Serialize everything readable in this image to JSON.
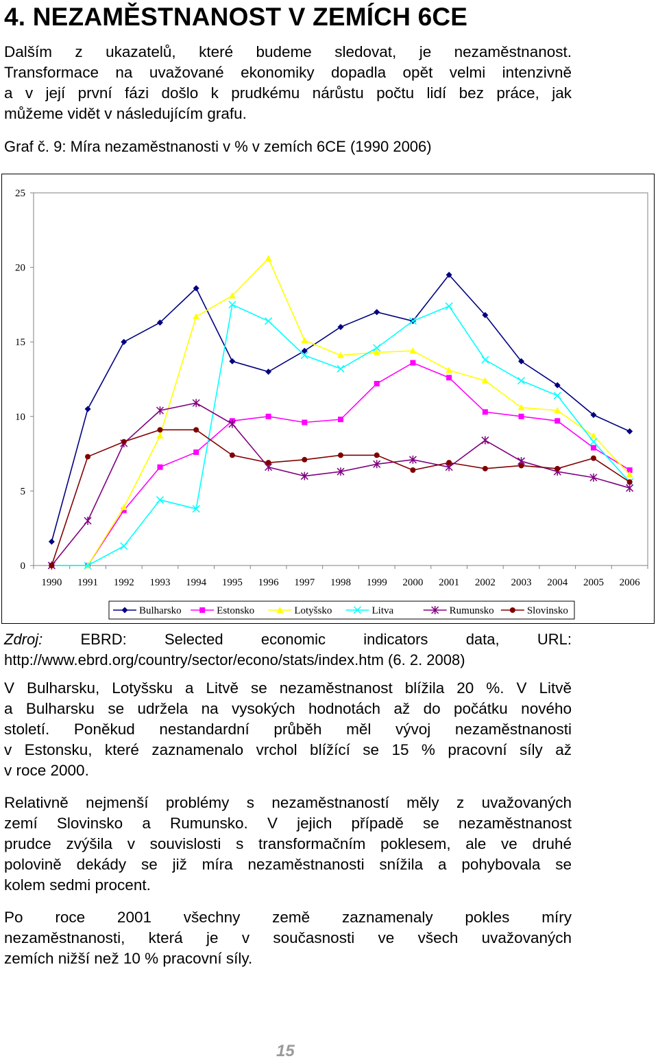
{
  "heading": "4. NEZAMĚSTNANOST V ZEMÍCH 6CE",
  "intro_lines": [
    "Dalším z ukazatelů, které budeme sledovat, je nezaměstnanost.",
    "Transformace na uvažované ekonomiky dopadla opět velmi intenzivně",
    "a v její první fázi došlo k prudkému nárůstu počtu lidí bez práce, jak",
    "můžeme vidět v následujícím grafu."
  ],
  "caption": "Graf č. 9: Míra nezaměstnanosti v % v zemích 6CE (1990 2006)",
  "source": {
    "prefix": "Zdroj:",
    "line1_rest": " EBRD: Selected economic indicators data, URL:",
    "line2": "http://www.ebrd.org/country/sector/econo/stats/index.htm (6. 2. 2008)"
  },
  "paragraph1_lines": [
    "V Bulharsku, Lotyšsku a Litvě se nezaměstnanost blížila 20 %. V Litvě",
    "a Bulharsku se udržela na vysokých hodnotách až do počátku nového",
    "století. Poněkud nestandardní průběh měl vývoj nezaměstnanosti",
    "v Estonsku, které zaznamenalo vrchol blížící se 15 % pracovní síly až",
    "v roce 2000."
  ],
  "paragraph2_lines": [
    "Relativně nejmenší problémy s nezaměstnaností měly z uvažovaných",
    "zemí Slovinsko a Rumunsko. V jejich případě se nezaměstnanost",
    "prudce zvýšila v souvislosti s transformačním poklesem, ale ve druhé",
    "polovině dekády se již míra nezaměstnanosti snížila a pohybovala se",
    "kolem sedmi procent."
  ],
  "paragraph3_lines": [
    "Po roce 2001 všechny země zaznamenaly pokles míry",
    "nezaměstnanosti, která je v současnosti ve všech uvažovaných",
    "zemích nižší než 10 % pracovní síly."
  ],
  "page_number": "15",
  "chart_data": {
    "type": "line",
    "title": "Míra nezaměstnanosti v % v zemích 6CE (1990 2006)",
    "xlabel": "",
    "ylabel": "",
    "ylim": [
      0,
      25
    ],
    "yticks": [
      "0",
      "5",
      "10",
      "15",
      "20",
      "25"
    ],
    "categories": [
      "1990",
      "1991",
      "1992",
      "1993",
      "1994",
      "1995",
      "1996",
      "1997",
      "1998",
      "1999",
      "2000",
      "2001",
      "2002",
      "2003",
      "2004",
      "2005",
      "2006"
    ],
    "legend_position": "bottom",
    "series": [
      {
        "name": "Bulharsko",
        "color": "#000080",
        "marker": "diamond",
        "values": [
          1.6,
          10.5,
          15.0,
          16.3,
          18.6,
          13.7,
          13.0,
          14.4,
          16.0,
          17.0,
          16.4,
          19.5,
          16.8,
          13.7,
          12.1,
          10.1,
          9.0
        ]
      },
      {
        "name": "Estonsko",
        "color": "#ff00ff",
        "marker": "square",
        "values": [
          0.0,
          0.0,
          3.7,
          6.6,
          7.6,
          9.7,
          10.0,
          9.6,
          9.8,
          12.2,
          13.6,
          12.6,
          10.3,
          10.0,
          9.7,
          7.9,
          6.4
        ]
      },
      {
        "name": "Lotyšsko",
        "color": "#ffff00",
        "marker": "triangle",
        "values": [
          0.0,
          0.0,
          3.9,
          8.7,
          16.7,
          18.1,
          20.6,
          15.1,
          14.1,
          14.3,
          14.4,
          13.1,
          12.4,
          10.6,
          10.4,
          8.7,
          6.1
        ]
      },
      {
        "name": "Litva",
        "color": "#00ffff",
        "marker": "x",
        "values": [
          0.0,
          0.0,
          1.3,
          4.4,
          3.8,
          17.5,
          16.4,
          14.1,
          13.2,
          14.6,
          16.4,
          17.4,
          13.8,
          12.4,
          11.4,
          8.3,
          5.6
        ]
      },
      {
        "name": "Rumunsko",
        "color": "#800080",
        "marker": "star",
        "values": [
          0.0,
          3.0,
          8.2,
          10.4,
          10.9,
          9.5,
          6.6,
          6.0,
          6.3,
          6.8,
          7.1,
          6.6,
          8.4,
          7.0,
          6.3,
          5.9,
          5.2
        ]
      },
      {
        "name": "Slovinsko",
        "color": "#800000",
        "marker": "circle",
        "values": [
          0.0,
          7.3,
          8.3,
          9.1,
          9.1,
          7.4,
          6.9,
          7.1,
          7.4,
          7.4,
          6.4,
          6.9,
          6.5,
          6.7,
          6.5,
          7.2,
          5.6
        ]
      }
    ]
  }
}
